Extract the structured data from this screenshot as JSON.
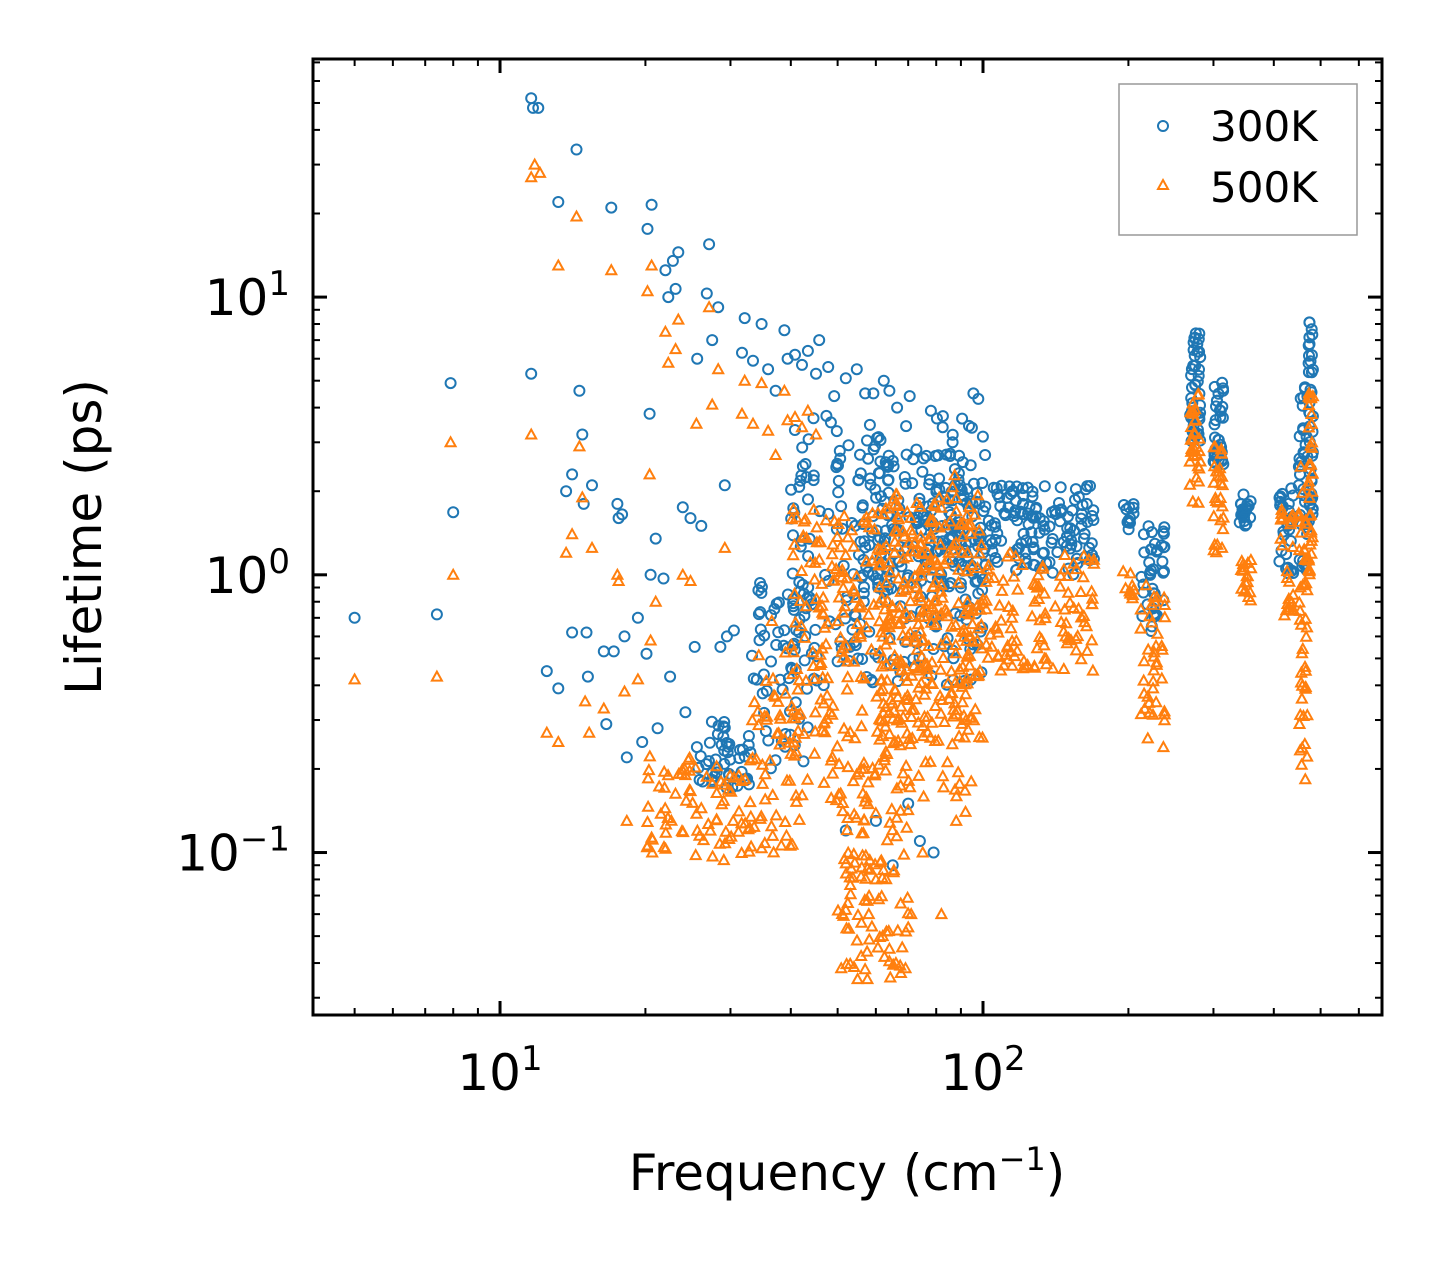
{
  "chart_data": {
    "type": "scatter",
    "xscale": "log",
    "yscale": "log",
    "xlim": [
      4.1,
      670
    ],
    "ylim": [
      0.026,
      72
    ],
    "xlabel": "Frequency (cm",
    "xlabel_sup": "−1",
    "xlabel_end": ")",
    "ylabel": "Lifetime (ps)",
    "x_ticks": [
      {
        "value": 10,
        "base": "10",
        "exp": "1"
      },
      {
        "value": 100,
        "base": "10",
        "exp": "2"
      }
    ],
    "y_ticks": [
      {
        "value": 0.1,
        "base": "10",
        "exp": "−1"
      },
      {
        "value": 1,
        "base": "10",
        "exp": "0"
      },
      {
        "value": 10,
        "base": "10",
        "exp": "1"
      }
    ],
    "legend": {
      "position": "top-right"
    },
    "series": [
      {
        "name": "300K",
        "marker": "circle",
        "color": "#1f77b4",
        "points": [
          [
            5.0,
            0.7
          ],
          [
            7.4,
            0.72
          ],
          [
            7.9,
            4.9
          ],
          [
            8.0,
            1.68
          ],
          [
            11.6,
            52
          ],
          [
            11.7,
            48
          ],
          [
            12.0,
            48
          ],
          [
            11.6,
            5.3
          ],
          [
            12.5,
            0.45
          ],
          [
            13.2,
            0.39
          ],
          [
            13.2,
            22
          ],
          [
            13.7,
            2.0
          ],
          [
            14.1,
            0.62
          ],
          [
            14.1,
            2.3
          ],
          [
            14.4,
            34
          ],
          [
            14.6,
            4.6
          ],
          [
            14.8,
            3.2
          ],
          [
            14.9,
            1.8
          ],
          [
            15.1,
            0.62
          ],
          [
            15.2,
            0.43
          ],
          [
            15.5,
            2.1
          ],
          [
            16.4,
            0.53
          ],
          [
            16.6,
            0.29
          ],
          [
            17.0,
            21
          ],
          [
            17.2,
            0.53
          ],
          [
            17.5,
            1.8
          ],
          [
            17.6,
            1.6
          ],
          [
            17.9,
            1.65
          ],
          [
            18.1,
            0.6
          ],
          [
            18.3,
            0.22
          ],
          [
            19.3,
            0.7
          ],
          [
            19.7,
            0.25
          ],
          [
            20.1,
            0.52
          ],
          [
            20.2,
            17.6
          ],
          [
            20.4,
            3.8
          ],
          [
            20.5,
            1.0
          ],
          [
            20.6,
            21.5
          ],
          [
            21.0,
            1.35
          ],
          [
            21.2,
            0.28
          ],
          [
            21.8,
            0.97
          ],
          [
            22.0,
            12.5
          ],
          [
            22.3,
            10
          ],
          [
            22.8,
            13.5
          ],
          [
            22.5,
            0.43
          ],
          [
            23.1,
            10.7
          ],
          [
            23.4,
            14.5
          ],
          [
            23.9,
            1.75
          ],
          [
            24.2,
            0.32
          ],
          [
            24.8,
            1.6
          ],
          [
            25.3,
            0.55
          ],
          [
            25.6,
            6.0
          ],
          [
            26.1,
            1.5
          ],
          [
            26.8,
            10.3
          ],
          [
            27.1,
            15.5
          ],
          [
            27.5,
            7.0
          ],
          [
            28.3,
            9.2
          ],
          [
            28.6,
            0.55
          ],
          [
            29.2,
            2.1
          ],
          [
            29.5,
            0.6
          ],
          [
            30.5,
            0.63
          ],
          [
            31.7,
            6.3
          ],
          [
            32.1,
            8.4
          ],
          [
            33.4,
            5.9
          ],
          [
            34.8,
            8.0
          ],
          [
            35.9,
            5.5
          ],
          [
            37.2,
            4.6
          ],
          [
            38.8,
            7.6
          ],
          [
            39.4,
            6.0
          ],
          [
            40.8,
            6.2
          ],
          [
            42.2,
            5.7
          ],
          [
            43.4,
            6.4
          ],
          [
            45.1,
            5.3
          ],
          [
            45.8,
            7.0
          ],
          [
            47.8,
            5.6
          ],
          [
            49.2,
            4.4
          ],
          [
            52.0,
            5.1
          ],
          [
            54.8,
            5.5
          ],
          [
            57.0,
            4.5
          ],
          [
            59.3,
            4.5
          ],
          [
            62.3,
            5.0
          ],
          [
            64.0,
            4.6
          ],
          [
            66.4,
            4.0
          ],
          [
            70.5,
            4.4
          ],
          [
            78.0,
            3.9
          ],
          [
            82.5,
            3.4
          ],
          [
            86.5,
            3.0
          ],
          [
            95.5,
            4.5
          ],
          [
            97.8,
            4.3
          ],
          [
            101,
            2.7
          ],
          [
            108,
            1.9
          ],
          [
            115,
            2.0
          ],
          [
            121,
            1.8
          ],
          [
            131,
            1.6
          ],
          [
            141,
            1.7
          ],
          [
            151,
            1.4
          ],
          [
            160,
            1.5
          ],
          [
            168,
            1.3
          ],
          [
            164,
            1.8
          ],
          [
            52,
            0.12
          ],
          [
            60,
            0.13
          ],
          [
            65,
            0.09
          ],
          [
            70,
            0.15
          ],
          [
            74,
            0.11
          ],
          [
            79,
            0.1
          ],
          [
            53,
            0.55
          ],
          [
            54,
            0.85
          ],
          [
            80,
            0.7
          ],
          [
            90,
            0.9
          ]
        ],
        "clusters": [
          [
            25,
            33,
            0.17,
            0.3,
            50
          ],
          [
            33,
            45,
            0.2,
            0.95,
            60
          ],
          [
            40,
            100,
            0.4,
            3.8,
            230
          ],
          [
            55,
            90,
            0.9,
            2.8,
            110
          ],
          [
            85,
            170,
            1.0,
            2.1,
            170
          ],
          [
            195,
            205,
            1.45,
            1.85,
            12
          ],
          [
            212,
            230,
            0.6,
            1.5,
            30
          ],
          [
            234,
            238,
            0.8,
            1.55,
            10
          ],
          [
            268,
            282,
            3.0,
            7.5,
            45
          ],
          [
            300,
            315,
            2.4,
            5.0,
            35
          ],
          [
            340,
            360,
            1.5,
            2.0,
            22
          ],
          [
            410,
            440,
            1.0,
            2.5,
            30
          ],
          [
            450,
            470,
            0.8,
            4.8,
            35
          ],
          [
            472,
            482,
            1.5,
            8.2,
            40
          ]
        ]
      },
      {
        "name": "500K",
        "marker": "triangle",
        "color": "#ff7f0e",
        "points": [
          [
            5.0,
            0.42
          ],
          [
            7.4,
            0.43
          ],
          [
            7.9,
            3.0
          ],
          [
            8.0,
            1.0
          ],
          [
            11.6,
            27
          ],
          [
            11.8,
            30
          ],
          [
            12.1,
            28
          ],
          [
            11.6,
            3.2
          ],
          [
            12.5,
            0.27
          ],
          [
            13.2,
            0.25
          ],
          [
            13.2,
            13
          ],
          [
            13.7,
            1.2
          ],
          [
            14.1,
            1.4
          ],
          [
            14.4,
            19.5
          ],
          [
            14.6,
            2.9
          ],
          [
            14.8,
            1.9
          ],
          [
            15.0,
            0.35
          ],
          [
            15.3,
            0.27
          ],
          [
            15.5,
            1.25
          ],
          [
            16.4,
            0.33
          ],
          [
            17.0,
            12.5
          ],
          [
            17.5,
            1.0
          ],
          [
            17.6,
            0.95
          ],
          [
            18.1,
            0.38
          ],
          [
            18.3,
            0.13
          ],
          [
            19.3,
            0.42
          ],
          [
            20.2,
            10.5
          ],
          [
            20.4,
            2.3
          ],
          [
            20.5,
            0.58
          ],
          [
            20.6,
            13
          ],
          [
            21.0,
            0.8
          ],
          [
            22.0,
            7.5
          ],
          [
            22.3,
            5.8
          ],
          [
            23.1,
            6.5
          ],
          [
            23.4,
            8.3
          ],
          [
            23.9,
            1.0
          ],
          [
            24.2,
            0.19
          ],
          [
            24.8,
            0.95
          ],
          [
            25.5,
            3.5
          ],
          [
            27.1,
            9.2
          ],
          [
            27.5,
            4.1
          ],
          [
            28.3,
            5.5
          ],
          [
            29.2,
            1.25
          ],
          [
            31.7,
            3.8
          ],
          [
            32.1,
            5.0
          ],
          [
            33.4,
            3.5
          ],
          [
            34.8,
            4.9
          ],
          [
            35.9,
            3.3
          ],
          [
            37.2,
            2.7
          ],
          [
            38.8,
            4.6
          ],
          [
            39.4,
            3.6
          ],
          [
            40.8,
            3.7
          ],
          [
            42.2,
            3.4
          ],
          [
            43.4,
            3.9
          ],
          [
            45.1,
            3.2
          ],
          [
            58,
            0.06
          ],
          [
            60,
            0.08
          ],
          [
            62,
            0.05
          ],
          [
            64,
            0.045
          ],
          [
            66,
            0.04
          ],
          [
            55,
            0.035
          ],
          [
            57,
            0.038
          ],
          [
            71,
            0.06
          ],
          [
            82,
            0.06
          ],
          [
            75,
            0.1
          ],
          [
            88,
            0.13
          ],
          [
            92,
            0.14
          ]
        ],
        "clusters": [
          [
            20,
            33,
            0.09,
            0.24,
            80
          ],
          [
            33,
            42,
            0.1,
            0.7,
            60
          ],
          [
            40,
            95,
            0.15,
            1.8,
            320
          ],
          [
            50,
            70,
            0.035,
            0.15,
            90
          ],
          [
            60,
            100,
            0.25,
            2.3,
            200
          ],
          [
            95,
            170,
            0.45,
            1.2,
            120
          ],
          [
            195,
            205,
            0.8,
            1.05,
            10
          ],
          [
            212,
            230,
            0.25,
            0.95,
            30
          ],
          [
            234,
            238,
            0.22,
            0.9,
            10
          ],
          [
            268,
            282,
            1.8,
            4.5,
            35
          ],
          [
            300,
            315,
            1.2,
            3.0,
            28
          ],
          [
            340,
            360,
            0.8,
            1.15,
            18
          ],
          [
            410,
            440,
            0.7,
            1.8,
            25
          ],
          [
            450,
            470,
            0.18,
            2.5,
            45
          ],
          [
            472,
            482,
            1.0,
            4.8,
            35
          ]
        ]
      }
    ]
  }
}
